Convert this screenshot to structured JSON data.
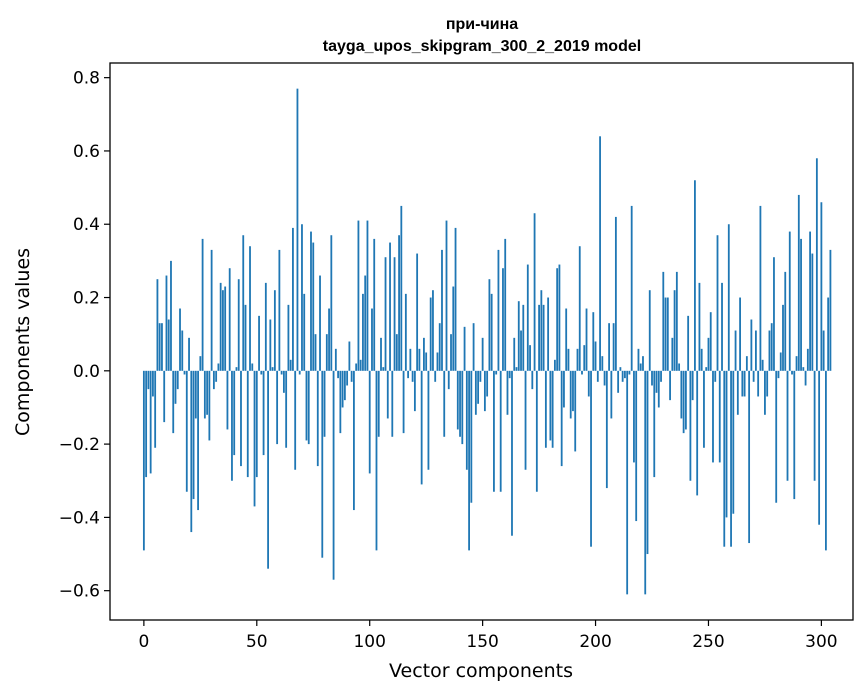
{
  "chart_data": {
    "type": "bar",
    "title": "при-чина",
    "subtitle": "tayga_upos_skipgram_300_2_2019 model",
    "xlabel": "Vector components",
    "ylabel": "Components values",
    "xlim": [
      -15,
      314
    ],
    "ylim": [
      -0.68,
      0.84
    ],
    "xticks": [
      0,
      50,
      100,
      150,
      200,
      250,
      300
    ],
    "yticks": [
      -0.6,
      -0.4,
      -0.2,
      0.0,
      0.2,
      0.4,
      0.6,
      0.8
    ],
    "ytick_labels": [
      "−0.6",
      "−0.4",
      "−0.2",
      "0.0",
      "0.2",
      "0.4",
      "0.6",
      "0.8"
    ],
    "bar_color": "#1f77b4",
    "grid": false,
    "values": [
      -0.49,
      -0.29,
      -0.05,
      -0.28,
      -0.07,
      -0.21,
      0.25,
      0.13,
      0.13,
      -0.14,
      0.26,
      0.14,
      0.3,
      -0.17,
      -0.09,
      -0.05,
      0.17,
      0.11,
      -0.01,
      -0.33,
      0.09,
      -0.44,
      -0.35,
      -0.13,
      -0.38,
      0.04,
      0.36,
      -0.13,
      -0.12,
      -0.19,
      0.33,
      -0.05,
      -0.03,
      0.02,
      0.24,
      0.22,
      0.23,
      -0.16,
      0.28,
      -0.3,
      -0.23,
      0.01,
      0.25,
      -0.26,
      0.37,
      0.18,
      -0.29,
      0.34,
      0.02,
      -0.37,
      -0.29,
      0.15,
      -0.01,
      -0.23,
      0.24,
      -0.54,
      0.14,
      0.01,
      0.22,
      -0.2,
      0.33,
      -0.01,
      -0.06,
      -0.21,
      0.18,
      0.03,
      0.39,
      -0.27,
      0.77,
      -0.01,
      0.4,
      0.21,
      -0.19,
      -0.2,
      0.38,
      0.35,
      0.1,
      -0.26,
      0.26,
      -0.51,
      -0.18,
      0.1,
      0.17,
      0.37,
      -0.57,
      0.06,
      -0.02,
      -0.17,
      -0.1,
      -0.08,
      -0.04,
      0.08,
      -0.03,
      -0.38,
      0.02,
      0.41,
      0.03,
      0.21,
      0.26,
      0.41,
      -0.28,
      0.17,
      0.36,
      -0.49,
      -0.18,
      0.09,
      0.01,
      0.31,
      -0.13,
      0.35,
      -0.18,
      0.31,
      0.1,
      0.37,
      0.45,
      -0.17,
      0.21,
      -0.02,
      0.06,
      -0.03,
      -0.11,
      0.32,
      0.06,
      -0.31,
      0.09,
      0.05,
      -0.27,
      0.2,
      0.22,
      -0.03,
      0.05,
      0.13,
      0.33,
      -0.18,
      0.41,
      -0.05,
      0.1,
      0.23,
      0.39,
      -0.16,
      -0.18,
      -0.2,
      0.12,
      -0.27,
      -0.49,
      -0.36,
      0.13,
      -0.12,
      -0.09,
      -0.03,
      0.09,
      -0.11,
      -0.07,
      0.25,
      0.21,
      -0.33,
      -0.01,
      0.33,
      -0.33,
      0.28,
      0.36,
      -0.12,
      -0.02,
      -0.45,
      0.09,
      0.01,
      0.19,
      0.11,
      0.18,
      -0.27,
      0.29,
      0.07,
      -0.05,
      0.43,
      -0.33,
      0.18,
      0.22,
      0.18,
      -0.21,
      0.2,
      -0.19,
      -0.21,
      0.03,
      0.28,
      0.29,
      -0.26,
      -0.1,
      0.17,
      0.06,
      -0.13,
      -0.11,
      -0.22,
      0.06,
      0.34,
      -0.01,
      0.07,
      0.17,
      -0.07,
      -0.48,
      0.16,
      0.08,
      -0.03,
      0.64,
      0.04,
      -0.04,
      -0.32,
      0.13,
      -0.13,
      0.13,
      0.42,
      -0.06,
      0.01,
      -0.03,
      -0.02,
      -0.61,
      -0.01,
      0.45,
      -0.25,
      -0.41,
      0.06,
      0.02,
      0.04,
      -0.61,
      -0.5,
      0.22,
      -0.04,
      -0.29,
      -0.06,
      -0.1,
      -0.03,
      0.27,
      0.2,
      0.2,
      -0.08,
      0.09,
      0.22,
      0.27,
      0.02,
      -0.13,
      -0.17,
      -0.16,
      0.15,
      -0.3,
      -0.08,
      0.52,
      -0.34,
      0.24,
      0.06,
      -0.21,
      0.01,
      0.09,
      0.16,
      -0.25,
      -0.03,
      0.37,
      -0.25,
      0.24,
      -0.48,
      -0.4,
      0.4,
      -0.48,
      -0.39,
      0.11,
      -0.12,
      0.2,
      -0.07,
      -0.07,
      0.04,
      -0.47,
      0.14,
      -0.03,
      0.11,
      -0.07,
      0.45,
      0.03,
      -0.12,
      -0.07,
      0.11,
      0.13,
      0.31,
      -0.36,
      -0.02,
      0.05,
      0.18,
      0.27,
      -0.3,
      0.38,
      -0.01,
      -0.35,
      0.04,
      0.48,
      0.36,
      0.01,
      -0.04,
      0.06,
      0.38,
      0.32,
      -0.3,
      0.58,
      -0.42,
      0.46,
      0.11,
      -0.49,
      0.2,
      0.33
    ]
  }
}
